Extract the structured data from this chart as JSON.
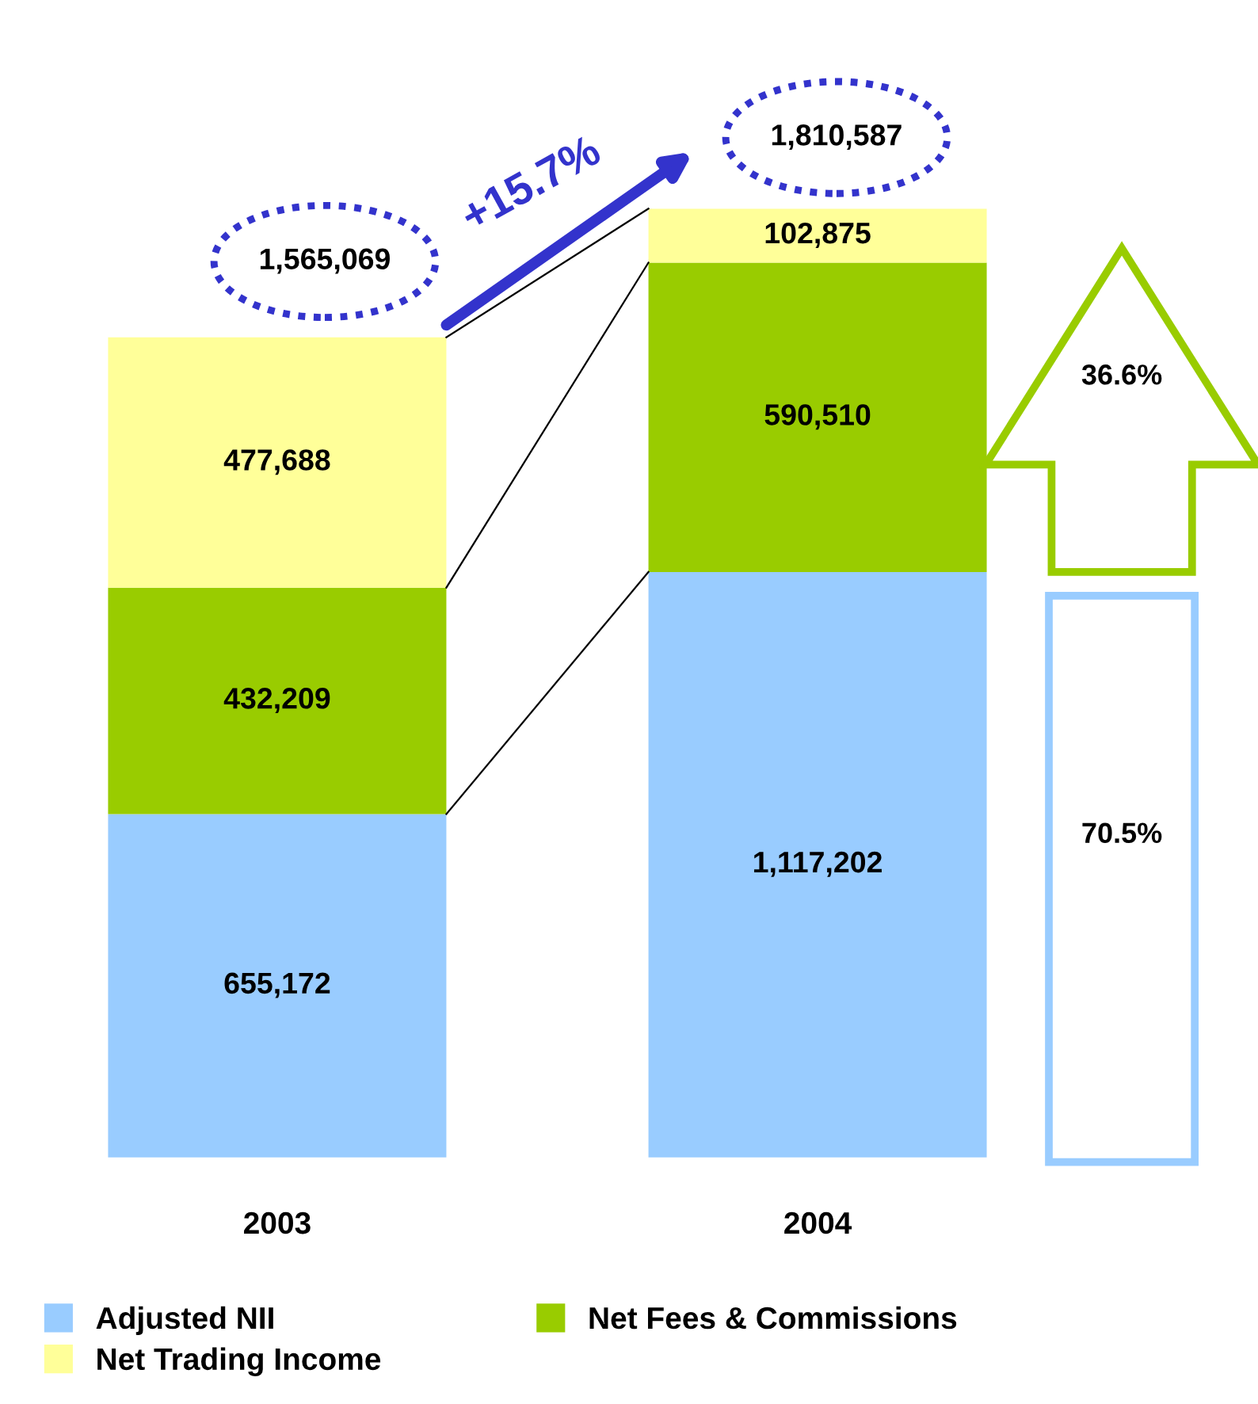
{
  "chart_data": {
    "type": "bar",
    "stacked": true,
    "categories": [
      "2003",
      "2004"
    ],
    "series": [
      {
        "name": "Adjusted NII",
        "color": "#99ccff",
        "values": [
          655172,
          1117202
        ],
        "value_labels": [
          "655,172",
          "1,117,202"
        ]
      },
      {
        "name": "Net Fees & Commissions",
        "color": "#99cc00",
        "values": [
          432209,
          590510
        ],
        "value_labels": [
          "432,209",
          "590,510"
        ]
      },
      {
        "name": "Net Trading Income",
        "color": "#ffff99",
        "values": [
          477688,
          102875
        ],
        "value_labels": [
          "477,688",
          "102,875"
        ]
      }
    ],
    "totals": [
      "1,565,069",
      "1,810,587"
    ],
    "annotations": [
      "+15.7%",
      "36.6%",
      "70.5%"
    ],
    "legend": "bottom left"
  }
}
